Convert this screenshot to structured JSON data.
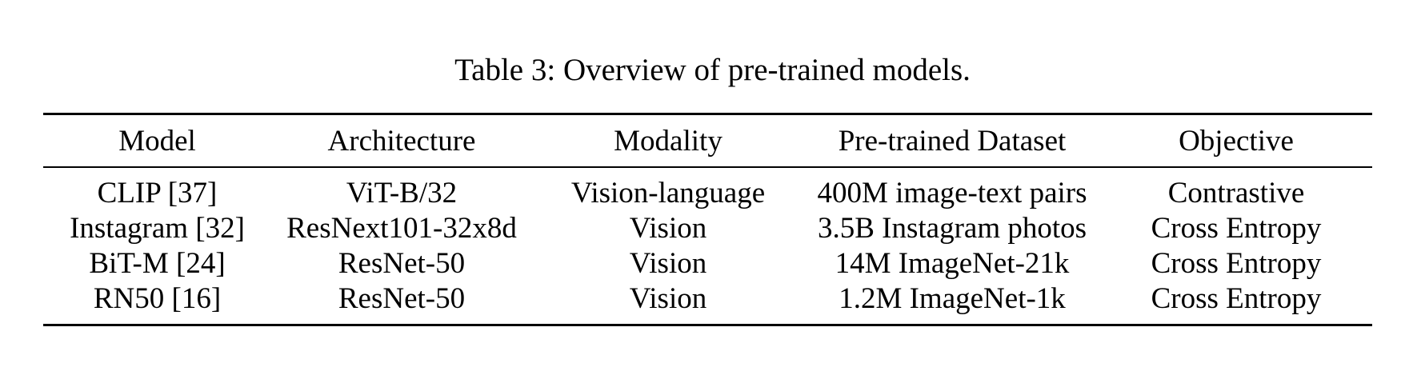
{
  "caption": "Table 3: Overview of pre-trained models.",
  "table": {
    "headers": [
      "Model",
      "Architecture",
      "Modality",
      "Pre-trained Dataset",
      "Objective"
    ],
    "rows": [
      [
        "CLIP [37]",
        "ViT-B/32",
        "Vision-language",
        "400M image-text pairs",
        "Contrastive"
      ],
      [
        "Instagram [32]",
        "ResNext101-32x8d",
        "Vision",
        "3.5B Instagram photos",
        "Cross Entropy"
      ],
      [
        "BiT-M [24]",
        "ResNet-50",
        "Vision",
        "14M ImageNet-21k",
        "Cross Entropy"
      ],
      [
        "RN50 [16]",
        "ResNet-50",
        "Vision",
        "1.2M ImageNet-1k",
        "Cross Entropy"
      ]
    ]
  }
}
